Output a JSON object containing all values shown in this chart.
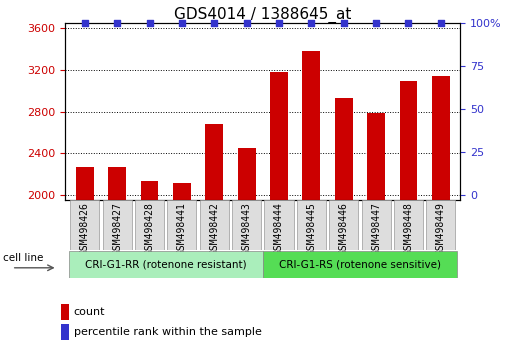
{
  "title": "GDS4014 / 1388645_at",
  "categories": [
    "GSM498426",
    "GSM498427",
    "GSM498428",
    "GSM498441",
    "GSM498442",
    "GSM498443",
    "GSM498444",
    "GSM498445",
    "GSM498446",
    "GSM498447",
    "GSM498448",
    "GSM498449"
  ],
  "bar_values": [
    2270,
    2270,
    2130,
    2110,
    2680,
    2450,
    3180,
    3380,
    2930,
    2790,
    3090,
    3140
  ],
  "percentile_values": [
    100,
    100,
    100,
    100,
    100,
    100,
    100,
    100,
    100,
    100,
    100,
    100
  ],
  "bar_color": "#cc0000",
  "percentile_color": "#3333cc",
  "ylim_left": [
    1950,
    3650
  ],
  "ylim_right": [
    -3.125,
    100
  ],
  "yticks_left": [
    2000,
    2400,
    2800,
    3200,
    3600
  ],
  "yticks_right": [
    0,
    25,
    50,
    75,
    100
  ],
  "group1_label": "CRI-G1-RR (rotenone resistant)",
  "group2_label": "CRI-G1-RS (rotenone sensitive)",
  "group1_color": "#aaeebb",
  "group2_color": "#55dd55",
  "group1_count": 6,
  "group2_count": 6,
  "cell_line_label": "cell line",
  "legend_count_label": "count",
  "legend_percentile_label": "percentile rank within the sample",
  "xtick_box_color": "#dddddd",
  "xtick_box_edge": "#999999",
  "title_fontsize": 11,
  "tick_fontsize": 8,
  "xtick_fontsize": 7
}
